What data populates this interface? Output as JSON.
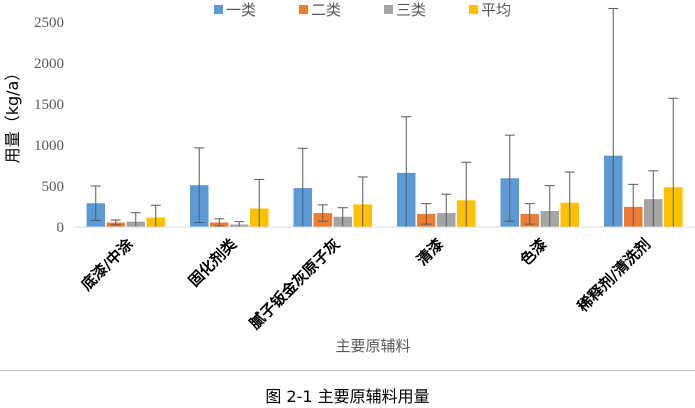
{
  "chart_data": {
    "type": "bar",
    "xlabel": "主要原辅料",
    "ylabel": "用量（kg/a）",
    "ylim": [
      0,
      2500
    ],
    "yticks": [
      0,
      500,
      1000,
      1500,
      2000,
      2500
    ],
    "grid": false,
    "legend_position": "top",
    "categories": [
      "底漆/中涂",
      "固化剂类",
      "腻子钣金灰原子灰",
      "清漆",
      "色漆",
      "稀释剂/清洗剂"
    ],
    "series": [
      {
        "name": "一类",
        "color": "#5b9bd5",
        "values": [
          290,
          510,
          475,
          660,
          595,
          870
        ],
        "error_high": [
          500,
          965,
          960,
          1345,
          1120,
          2665
        ],
        "error_low": [
          80,
          55,
          0,
          0,
          70,
          0
        ]
      },
      {
        "name": "二类",
        "color": "#ed7d31",
        "values": [
          55,
          55,
          170,
          160,
          160,
          245
        ],
        "error_high": [
          85,
          100,
          270,
          285,
          285,
          520
        ],
        "error_low": [
          25,
          10,
          70,
          35,
          35,
          0
        ]
      },
      {
        "name": "三类",
        "color": "#a5a5a5",
        "values": [
          65,
          30,
          125,
          170,
          195,
          340
        ],
        "error_high": [
          175,
          65,
          235,
          400,
          505,
          685
        ],
        "error_low": [
          0,
          0,
          0,
          0,
          0,
          0
        ]
      },
      {
        "name": "平均",
        "color": "#ffc000",
        "values": [
          115,
          225,
          275,
          325,
          295,
          485
        ],
        "error_high": [
          265,
          580,
          610,
          790,
          670,
          1570
        ],
        "error_low": [
          0,
          0,
          0,
          0,
          0,
          0
        ]
      }
    ]
  },
  "caption": "图 2-1    主要原辅料用量"
}
